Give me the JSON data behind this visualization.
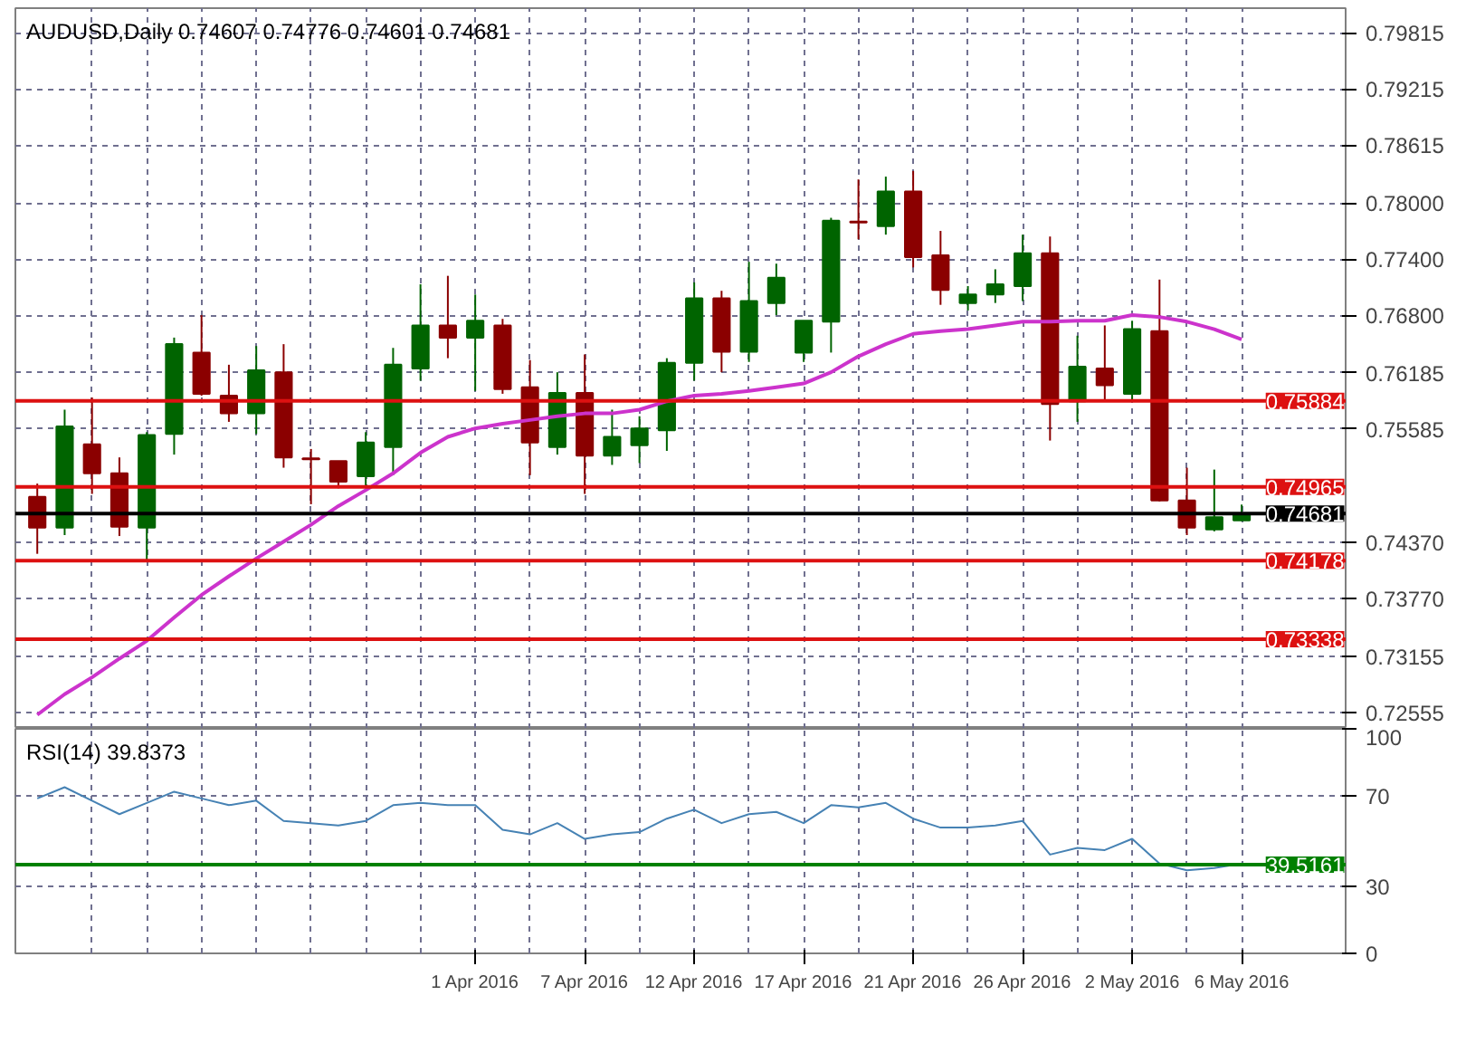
{
  "chart_data": [
    {
      "type": "candlestick",
      "title": "AUDUSD,Daily  0.74607 0.74776 0.74601 0.74681",
      "categories": [
        null,
        null,
        null,
        null,
        null,
        null,
        null,
        null,
        null,
        null,
        null,
        null,
        null,
        null,
        null,
        null,
        null,
        null,
        null,
        null,
        null,
        null,
        null,
        null,
        null,
        null,
        null,
        null,
        null,
        null,
        null,
        null,
        null,
        null,
        null,
        null,
        null,
        null,
        null,
        null,
        null,
        null,
        null,
        null,
        null
      ],
      "ohlc": [
        [
          0.7486,
          0.75,
          0.7425,
          0.7453
        ],
        [
          0.7453,
          0.7579,
          0.7445,
          0.7561
        ],
        [
          0.7542,
          0.7592,
          0.7489,
          0.7511
        ],
        [
          0.7511,
          0.7528,
          0.7444,
          0.7454
        ],
        [
          0.7453,
          0.7555,
          0.7416,
          0.7552
        ],
        [
          0.7553,
          0.7656,
          0.7531,
          0.7649
        ],
        [
          0.764,
          0.768,
          0.7594,
          0.7596
        ],
        [
          0.7594,
          0.7627,
          0.7566,
          0.7575
        ],
        [
          0.7575,
          0.7647,
          0.7553,
          0.7621
        ],
        [
          0.7619,
          0.7649,
          0.7517,
          0.7528
        ],
        [
          0.7527,
          0.7537,
          0.7478,
          0.7526
        ],
        [
          0.7524,
          0.7524,
          0.7495,
          0.7502
        ],
        [
          0.7508,
          0.7555,
          0.7495,
          0.7544
        ],
        [
          0.7539,
          0.7645,
          0.7509,
          0.7627
        ],
        [
          0.7623,
          0.7713,
          0.761,
          0.7669
        ],
        [
          0.7669,
          0.7722,
          0.7634,
          0.7656
        ],
        [
          0.7656,
          0.7702,
          0.7599,
          0.7674
        ],
        [
          0.7669,
          0.7676,
          0.7596,
          0.7601
        ],
        [
          0.7603,
          0.7632,
          0.7509,
          0.7544
        ],
        [
          0.7539,
          0.7619,
          0.7531,
          0.7597
        ],
        [
          0.7597,
          0.7638,
          0.7489,
          0.753
        ],
        [
          0.753,
          0.7579,
          0.752,
          0.755
        ],
        [
          0.7541,
          0.7572,
          0.7522,
          0.7559
        ],
        [
          0.7557,
          0.7634,
          0.7535,
          0.7629
        ],
        [
          0.7629,
          0.7715,
          0.761,
          0.7698
        ],
        [
          0.7698,
          0.7706,
          0.7619,
          0.7641
        ],
        [
          0.7641,
          0.7737,
          0.763,
          0.7695
        ],
        [
          0.7693,
          0.7735,
          0.768,
          0.772
        ],
        [
          0.764,
          0.7674,
          0.763,
          0.7674
        ],
        [
          0.7673,
          0.7784,
          0.764,
          0.7781
        ],
        [
          0.778,
          0.7825,
          0.7761,
          0.7779
        ],
        [
          0.7775,
          0.7828,
          0.7766,
          0.7812
        ],
        [
          0.7812,
          0.7834,
          0.7731,
          0.7742
        ],
        [
          0.7744,
          0.777,
          0.7691,
          0.7707
        ],
        [
          0.7693,
          0.7711,
          0.7685,
          0.7702
        ],
        [
          0.7702,
          0.7729,
          0.7693,
          0.7713
        ],
        [
          0.7711,
          0.7766,
          0.7695,
          0.7746
        ],
        [
          0.7746,
          0.7764,
          0.7546,
          0.7585
        ],
        [
          0.7588,
          0.7658,
          0.7566,
          0.7625
        ],
        [
          0.7623,
          0.7669,
          0.759,
          0.7605
        ],
        [
          0.7596,
          0.7674,
          0.759,
          0.7665
        ],
        [
          0.7663,
          0.7718,
          0.7481,
          0.7482
        ],
        [
          0.7482,
          0.7517,
          0.7445,
          0.7453
        ],
        [
          0.7451,
          0.7515,
          0.7449,
          0.7464
        ],
        [
          0.74607,
          0.74776,
          0.74601,
          0.74681
        ]
      ],
      "colors": [
        "#8b0000",
        "#006400",
        "#8b0000",
        "#8b0000",
        "#006400",
        "#006400",
        "#8b0000",
        "#8b0000",
        "#006400",
        "#8b0000",
        "#8b0000",
        "#8b0000",
        "#006400",
        "#006400",
        "#006400",
        "#8b0000",
        "#006400",
        "#8b0000",
        "#8b0000",
        "#006400",
        "#8b0000",
        "#006400",
        "#006400",
        "#006400",
        "#006400",
        "#8b0000",
        "#006400",
        "#006400",
        "#006400",
        "#006400",
        "#8b0000",
        "#006400",
        "#8b0000",
        "#8b0000",
        "#006400",
        "#006400",
        "#006400",
        "#8b0000",
        "#006400",
        "#8b0000",
        "#006400",
        "#8b0000",
        "#8b0000",
        "#006400",
        "#006400"
      ],
      "series": [
        {
          "type": "line",
          "color": "#cc33cc",
          "values": [
            0.7253,
            0.7275,
            0.7293,
            0.7313,
            0.7332,
            0.7357,
            0.7381,
            0.7401,
            0.742,
            0.7438,
            0.7456,
            0.7476,
            0.7493,
            0.7511,
            0.7533,
            0.755,
            0.7559,
            0.7564,
            0.7568,
            0.7572,
            0.7575,
            0.7575,
            0.7579,
            0.7588,
            0.7594,
            0.7596,
            0.7599,
            0.7603,
            0.7607,
            0.7619,
            0.7636,
            0.7649,
            0.766,
            0.7663,
            0.7665,
            0.7669,
            0.7673,
            0.7673,
            0.7674,
            0.7674,
            0.768,
            0.7678,
            0.7673,
            0.7665,
            0.7654
          ]
        }
      ],
      "ref_lines": [
        {
          "axis": "y",
          "value": 0.75884,
          "label": "0.75884",
          "color": "#dd1111"
        },
        {
          "axis": "y",
          "value": 0.74965,
          "label": "0.74965",
          "color": "#dd1111"
        },
        {
          "axis": "y",
          "value": 0.74681,
          "label": "0.74681",
          "color": "#000000"
        },
        {
          "axis": "y",
          "value": 0.74178,
          "label": "0.74178",
          "color": "#dd1111"
        },
        {
          "axis": "y",
          "value": 0.73338,
          "label": "0.73338",
          "color": "#dd1111"
        }
      ],
      "ylim": [
        0.7238,
        0.8008
      ],
      "yticks": [
        0.79815,
        0.79215,
        0.78615,
        {
          "value": 0.78,
          "label": "0.78000"
        },
        {
          "value": 0.774,
          "label": "0.77400"
        },
        {
          "value": 0.768,
          "label": "0.76800"
        },
        0.76185,
        0.75585,
        {
          "value": 0.7437,
          "label": "0.74370"
        },
        {
          "value": 0.7377,
          "label": "0.73770"
        },
        0.73155,
        0.72555
      ],
      "grid": true,
      "tick_labels": "y"
    },
    {
      "type": "line",
      "title": "RSI(14) 39.8373",
      "categories": [
        null,
        null,
        null,
        null,
        null,
        null,
        null,
        null,
        null,
        null,
        null,
        null,
        null,
        null,
        null,
        null,
        "1 Apr 2016",
        null,
        null,
        null,
        "7 Apr 2016",
        null,
        null,
        null,
        "12 Apr 2016",
        null,
        null,
        null,
        "17 Apr 2016",
        null,
        null,
        null,
        "21 Apr 2016",
        null,
        null,
        null,
        "26 Apr 2016",
        null,
        null,
        null,
        "2 May 2016",
        null,
        null,
        null,
        "6 May 2016"
      ],
      "color": "#4682b4",
      "values": [
        69,
        74,
        68,
        62,
        67,
        72,
        69,
        66,
        68,
        59,
        58,
        57,
        59,
        66,
        67,
        66,
        66,
        55,
        53,
        58,
        51,
        53,
        54,
        60,
        64,
        58,
        62,
        63,
        58,
        66,
        65,
        67,
        60,
        56,
        56,
        57,
        59,
        44,
        47,
        46,
        51,
        40,
        37,
        38,
        40
      ],
      "ref_lines": [
        {
          "axis": "y",
          "value": 39.5161,
          "label": "39.5161",
          "color": "#008000"
        }
      ],
      "ylim": [
        0,
        100
      ],
      "yticks": [
        0,
        30,
        70,
        100
      ],
      "grid": true
    }
  ]
}
